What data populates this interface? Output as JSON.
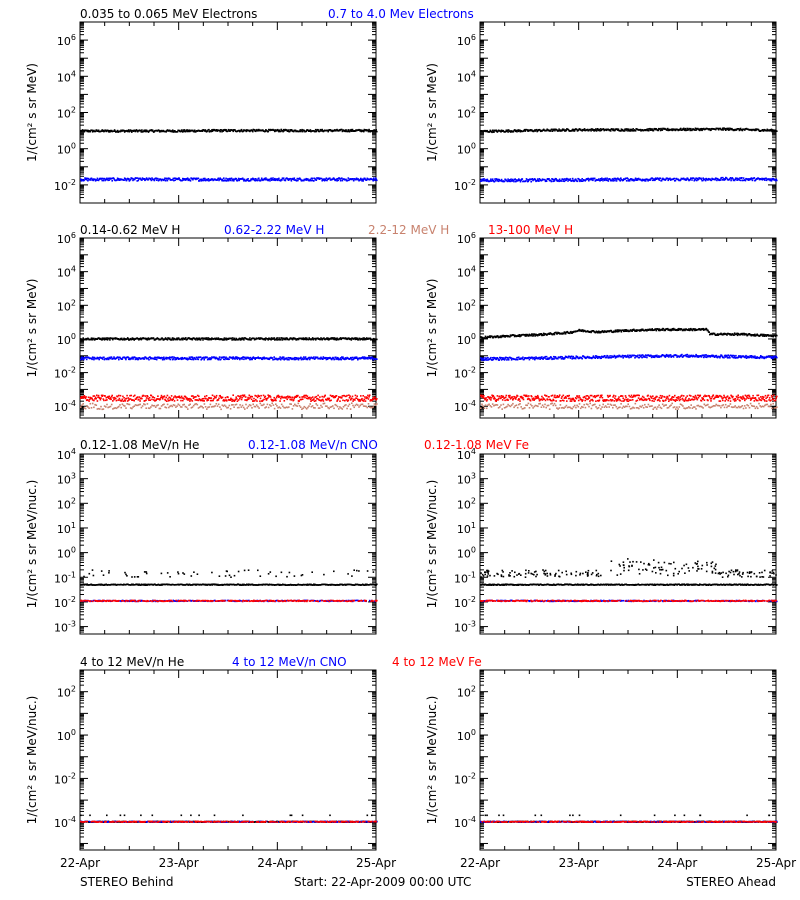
{
  "colors": {
    "black": "#000000",
    "blue": "#0000ff",
    "tan": "#c8826e",
    "red": "#ff0000"
  },
  "footer": {
    "left": "STEREO Behind",
    "center": "Start: 22-Apr-2009 00:00 UTC",
    "right": "STEREO Ahead"
  },
  "chart_data": [
    {
      "type": "scatter",
      "id": "electrons-behind",
      "panel": "electrons",
      "spacecraft": "behind",
      "ylabel": "1/(cm² s sr MeV)",
      "yscale": "log",
      "ylim": [
        0.001,
        10000000
      ],
      "yticks": [
        0.01,
        1,
        100,
        10000,
        1000000
      ],
      "ytick_labels": [
        "10^-2",
        "10^0",
        "10^2",
        "10^4",
        "10^6"
      ],
      "xlim": [
        "22-Apr",
        "25-Apr"
      ],
      "xticks": [
        "22-Apr",
        "23-Apr",
        "24-Apr",
        "25-Apr"
      ],
      "series": [
        {
          "name": "0.035 to 0.065 MeV Electrons",
          "color": "black",
          "x": [
            0,
            0.5,
            1,
            1.5,
            2,
            2.5,
            3
          ],
          "y": [
            9.5,
            9.5,
            9.5,
            10,
            10,
            10,
            10
          ]
        },
        {
          "name": "0.7 to 4.0 Mev Electrons",
          "color": "blue",
          "x": [
            0,
            0.5,
            1,
            1.5,
            2,
            2.5,
            3
          ],
          "y": [
            0.02,
            0.02,
            0.02,
            0.02,
            0.02,
            0.02,
            0.02
          ]
        }
      ]
    },
    {
      "type": "scatter",
      "id": "electrons-ahead",
      "panel": "electrons",
      "spacecraft": "ahead",
      "ylabel": "1/(cm² s sr MeV)",
      "yscale": "log",
      "ylim": [
        0.001,
        10000000
      ],
      "yticks": [
        0.01,
        1,
        100,
        10000,
        1000000
      ],
      "ytick_labels": [
        "10^-2",
        "10^0",
        "10^2",
        "10^4",
        "10^6"
      ],
      "xlim": [
        "22-Apr",
        "25-Apr"
      ],
      "xticks": [
        "22-Apr",
        "23-Apr",
        "24-Apr",
        "25-Apr"
      ],
      "series": [
        {
          "name": "0.035 to 0.065 MeV Electrons",
          "color": "black",
          "x": [
            0,
            0.5,
            1,
            1.5,
            2,
            2.5,
            3
          ],
          "y": [
            9,
            10,
            11,
            11,
            11.5,
            12,
            10
          ]
        },
        {
          "name": "0.7 to 4.0 Mev Electrons",
          "color": "blue",
          "x": [
            0,
            0.5,
            1,
            1.5,
            2,
            2.5,
            3
          ],
          "y": [
            0.018,
            0.018,
            0.019,
            0.02,
            0.02,
            0.021,
            0.02
          ]
        }
      ]
    },
    {
      "type": "scatter",
      "id": "protons-behind",
      "panel": "protons",
      "spacecraft": "behind",
      "ylabel": "1/(cm² s sr MeV)",
      "yscale": "log",
      "ylim": [
        2e-05,
        1000000
      ],
      "yticks": [
        0.0001,
        0.01,
        1,
        100,
        10000,
        1000000
      ],
      "ytick_labels": [
        "10^-4",
        "10^-2",
        "10^0",
        "10^2",
        "10^4",
        "10^6"
      ],
      "xlim": [
        "22-Apr",
        "25-Apr"
      ],
      "xticks": [
        "22-Apr",
        "23-Apr",
        "24-Apr",
        "25-Apr"
      ],
      "series": [
        {
          "name": "0.14-0.62 MeV H",
          "color": "black",
          "x": [
            0,
            0.5,
            1,
            1.5,
            2,
            2.5,
            3
          ],
          "y": [
            1,
            1,
            1,
            1,
            1,
            1,
            1
          ]
        },
        {
          "name": "0.62-2.22 MeV H",
          "color": "blue",
          "x": [
            0,
            0.5,
            1,
            1.5,
            2,
            2.5,
            3
          ],
          "y": [
            0.07,
            0.07,
            0.07,
            0.07,
            0.07,
            0.07,
            0.07
          ]
        },
        {
          "name": "2.2-12 MeV H",
          "color": "tan",
          "x": [
            0,
            0.5,
            1,
            1.5,
            2,
            2.5,
            3
          ],
          "y": [
            0.0001,
            0.0001,
            0.0001,
            0.0001,
            0.0001,
            0.0001,
            0.0001
          ]
        },
        {
          "name": "13-100 MeV H",
          "color": "red",
          "x": [
            0,
            0.5,
            1,
            1.5,
            2,
            2.5,
            3
          ],
          "y": [
            0.0003,
            0.0003,
            0.0003,
            0.0003,
            0.0003,
            0.0003,
            0.0003
          ]
        }
      ]
    },
    {
      "type": "scatter",
      "id": "protons-ahead",
      "panel": "protons",
      "spacecraft": "ahead",
      "ylabel": "1/(cm² s sr MeV)",
      "yscale": "log",
      "ylim": [
        2e-05,
        1000000
      ],
      "yticks": [
        0.0001,
        0.01,
        1,
        100,
        10000,
        1000000
      ],
      "ytick_labels": [
        "10^-4",
        "10^-2",
        "10^0",
        "10^2",
        "10^4",
        "10^6"
      ],
      "xlim": [
        "22-Apr",
        "25-Apr"
      ],
      "xticks": [
        "22-Apr",
        "23-Apr",
        "24-Apr",
        "25-Apr"
      ],
      "series": [
        {
          "name": "0.14-0.62 MeV H",
          "color": "black",
          "x": [
            0,
            0.3,
            0.6,
            0.9,
            1.0,
            1.2,
            1.5,
            1.8,
            2.1,
            2.3,
            2.32,
            2.6,
            3
          ],
          "y": [
            1.2,
            1.5,
            1.8,
            2.4,
            3.2,
            2.6,
            3.2,
            3.6,
            3.6,
            3.6,
            1.9,
            1.9,
            1.5
          ]
        },
        {
          "name": "0.62-2.22 MeV H",
          "color": "blue",
          "x": [
            0,
            0.5,
            1,
            1.5,
            2,
            2.5,
            3
          ],
          "y": [
            0.065,
            0.07,
            0.08,
            0.09,
            0.1,
            0.09,
            0.08
          ]
        },
        {
          "name": "2.2-12 MeV H",
          "color": "tan",
          "x": [
            0,
            0.5,
            1,
            1.5,
            2,
            2.5,
            3
          ],
          "y": [
            0.0001,
            0.0001,
            0.0001,
            0.0001,
            0.0001,
            0.0001,
            0.0001
          ]
        },
        {
          "name": "13-100 MeV H",
          "color": "red",
          "x": [
            0,
            0.5,
            1,
            1.5,
            2,
            2.5,
            3
          ],
          "y": [
            0.0003,
            0.0003,
            0.0003,
            0.0003,
            0.0003,
            0.0003,
            0.0003
          ]
        }
      ]
    },
    {
      "type": "scatter",
      "id": "heavy-low-behind",
      "panel": "heavy-low",
      "spacecraft": "behind",
      "ylabel": "1/(cm² s sr MeV/nuc.)",
      "yscale": "log",
      "ylim": [
        0.0005,
        10000
      ],
      "yticks": [
        0.001,
        0.01,
        0.1,
        1,
        10,
        100,
        1000,
        10000
      ],
      "ytick_labels": [
        "10^-3",
        "10^-2",
        "10^-1",
        "10^0",
        "10^1",
        "10^2",
        "10^3",
        "10^4"
      ],
      "xlim": [
        "22-Apr",
        "25-Apr"
      ],
      "xticks": [
        "22-Apr",
        "23-Apr",
        "24-Apr",
        "25-Apr"
      ],
      "series": [
        {
          "name": "0.12-1.08 MeV/n He",
          "color": "black",
          "x": [
            0,
            1,
            2,
            3
          ],
          "y": [
            0.05,
            0.05,
            0.05,
            0.05
          ]
        },
        {
          "name": "0.12-1.08 MeV/n CNO",
          "color": "blue",
          "x": [
            0,
            1,
            2,
            3
          ],
          "y": [
            0.011,
            0.011,
            0.011,
            0.011
          ]
        },
        {
          "name": "0.12-1.08 MeV Fe",
          "color": "red",
          "x": [
            0,
            1,
            2,
            3
          ],
          "y": [
            0.011,
            0.011,
            0.011,
            0.011
          ]
        }
      ]
    },
    {
      "type": "scatter",
      "id": "heavy-low-ahead",
      "panel": "heavy-low",
      "spacecraft": "ahead",
      "ylabel": "1/(cm² s sr MeV/nuc.)",
      "yscale": "log",
      "ylim": [
        0.0005,
        10000
      ],
      "yticks": [
        0.001,
        0.01,
        0.1,
        1,
        10,
        100,
        1000,
        10000
      ],
      "ytick_labels": [
        "10^-3",
        "10^-2",
        "10^-1",
        "10^0",
        "10^1",
        "10^2",
        "10^3",
        "10^4"
      ],
      "xlim": [
        "22-Apr",
        "25-Apr"
      ],
      "xticks": [
        "22-Apr",
        "23-Apr",
        "24-Apr",
        "25-Apr"
      ],
      "series": [
        {
          "name": "0.12-1.08 MeV/n He",
          "color": "black",
          "x": [
            0,
            1,
            2,
            3
          ],
          "y": [
            0.05,
            0.05,
            0.05,
            0.05
          ]
        },
        {
          "name": "0.12-1.08 MeV/n CNO",
          "color": "blue",
          "x": [
            0,
            1,
            2,
            3
          ],
          "y": [
            0.011,
            0.011,
            0.011,
            0.011
          ]
        },
        {
          "name": "0.12-1.08 MeV Fe",
          "color": "red",
          "x": [
            0,
            1,
            2,
            3
          ],
          "y": [
            0.011,
            0.011,
            0.011,
            0.011
          ]
        }
      ]
    },
    {
      "type": "scatter",
      "id": "heavy-high-behind",
      "panel": "heavy-high",
      "spacecraft": "behind",
      "ylabel": "1/(cm² s sr MeV/nuc.)",
      "yscale": "log",
      "ylim": [
        5e-06,
        1000
      ],
      "yticks": [
        0.0001,
        0.01,
        1,
        100
      ],
      "ytick_labels": [
        "10^-4",
        "10^-2",
        "10^0",
        "10^2"
      ],
      "xlim": [
        "22-Apr",
        "25-Apr"
      ],
      "xticks": [
        "22-Apr",
        "23-Apr",
        "24-Apr",
        "25-Apr"
      ],
      "series": [
        {
          "name": "4 to 12 MeV/n He",
          "color": "black",
          "x": [
            0,
            1,
            2,
            3
          ],
          "y": [
            0.0001,
            0.0001,
            0.0001,
            0.0001
          ]
        },
        {
          "name": "4 to 12 MeV/n CNO",
          "color": "blue",
          "x": [
            0,
            1,
            2,
            3
          ],
          "y": [
            0.0001,
            0.0001,
            0.0001,
            0.0001
          ]
        },
        {
          "name": "4 to 12 MeV Fe",
          "color": "red",
          "x": [
            0,
            1,
            2,
            3
          ],
          "y": [
            0.0001,
            0.0001,
            0.0001,
            0.0001
          ]
        }
      ]
    },
    {
      "type": "scatter",
      "id": "heavy-high-ahead",
      "panel": "heavy-high",
      "spacecraft": "ahead",
      "ylabel": "1/(cm² s sr MeV/nuc.)",
      "yscale": "log",
      "ylim": [
        5e-06,
        1000
      ],
      "yticks": [
        0.0001,
        0.01,
        1,
        100
      ],
      "ytick_labels": [
        "10^-4",
        "10^-2",
        "10^0",
        "10^2"
      ],
      "xlim": [
        "22-Apr",
        "25-Apr"
      ],
      "xticks": [
        "22-Apr",
        "23-Apr",
        "24-Apr",
        "25-Apr"
      ],
      "series": [
        {
          "name": "4 to 12 MeV/n He",
          "color": "black",
          "x": [
            0,
            1,
            2,
            3
          ],
          "y": [
            0.0001,
            0.0001,
            0.0001,
            0.0001
          ]
        },
        {
          "name": "4 to 12 MeV/n CNO",
          "color": "blue",
          "x": [
            0,
            1,
            2,
            3
          ],
          "y": [
            0.0001,
            0.0001,
            0.0001,
            0.0001
          ]
        },
        {
          "name": "4 to 12 MeV Fe",
          "color": "red",
          "x": [
            0,
            1,
            2,
            3
          ],
          "y": [
            0.0001,
            0.0001,
            0.0001,
            0.0001
          ]
        }
      ]
    }
  ]
}
